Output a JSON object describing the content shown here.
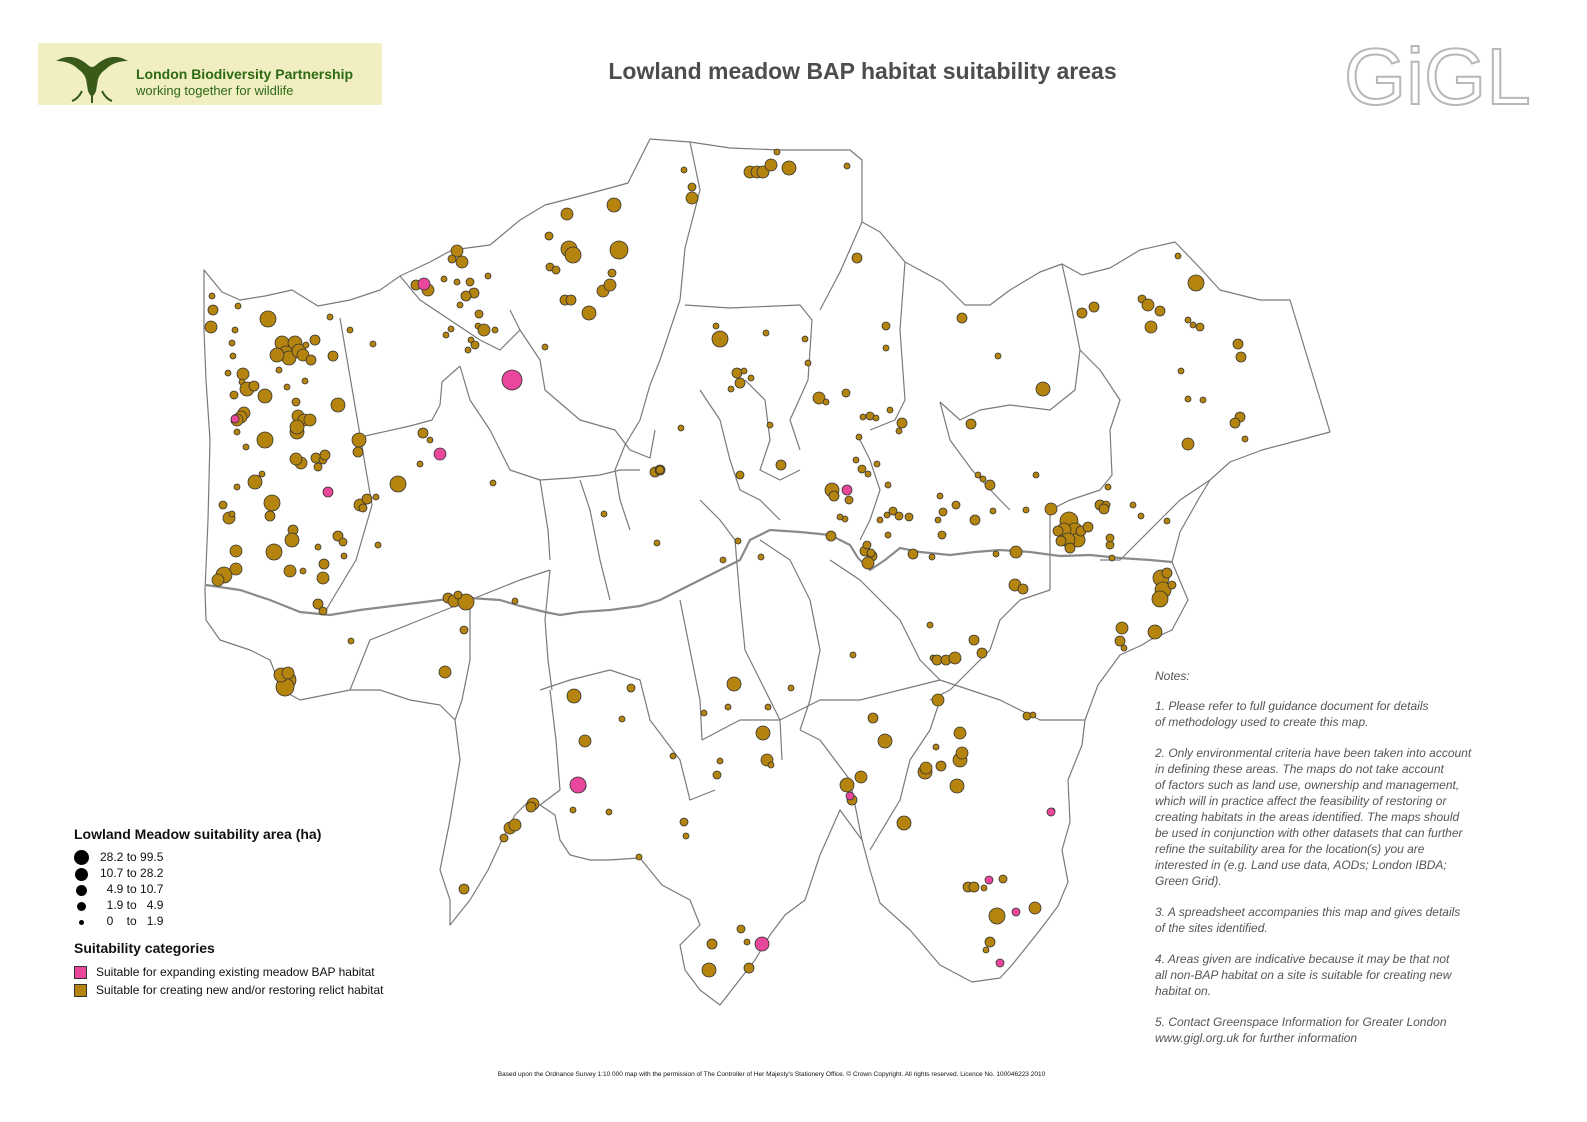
{
  "title": "Lowland meadow BAP habitat suitability areas",
  "logos": {
    "partner_name": "London Biodiversity Partnership",
    "partner_tagline": "working together for wildlife",
    "gigl": "GiGL"
  },
  "legend": {
    "size_heading": "Lowland Meadow suitability area (ha)",
    "size_classes": [
      {
        "label": "28.2 to 99.5",
        "min": 28.2,
        "max": 99.5
      },
      {
        "label": "10.7 to 28.2",
        "min": 10.7,
        "max": 28.2
      },
      {
        "label": "  4.9 to 10.7",
        "min": 4.9,
        "max": 10.7
      },
      {
        "label": "  1.9 to   4.9",
        "min": 1.9,
        "max": 4.9
      },
      {
        "label": "  0    to   1.9",
        "min": 0,
        "max": 1.9
      }
    ],
    "category_heading": "Suitability categories",
    "categories": [
      {
        "label": "Suitable for expanding existing meadow BAP habitat",
        "color": "#e8479b"
      },
      {
        "label": "Suitable for creating new and/or restoring relict habitat",
        "color": "#b5840f"
      }
    ]
  },
  "notes": {
    "heading": "Notes:",
    "items": [
      "1. Please refer to full guidance document for details\nof methodology used to create this map.",
      "2. Only environmental criteria have been taken into account\nin defining these areas.  The maps do not take account\nof factors such as land use, ownership and management,\nwhich will in practice affect the feasibility of restoring or\ncreating habitats in the areas identified.  The maps should\nbe used in conjunction with other datasets that can further\nrefine the suitability area for the location(s) you are\ninterested in (e.g. Land use data, AODs; London IBDA;\nGreen Grid).",
      "3. A spreadsheet accompanies this map and gives details\nof the sites identified.",
      "4. Areas given are indicative because it may be that not\nall non-BAP habitat on a site is suitable for creating new\nhabitat on.",
      "5. Contact Greenspace Information for Greater London\nwww.gigl.org.uk for further information"
    ]
  },
  "credit": "Based upon the Ordnance Survey 1:10 000 map with the permission of The Controller of Her Majesty's Stationery Office. © Crown Copyright. All rights reserved. Licence No. 100046223 2010",
  "colors": {
    "expanding": "#e8479b",
    "creating": "#b5840f",
    "boundary": "#7a7a7a"
  }
}
